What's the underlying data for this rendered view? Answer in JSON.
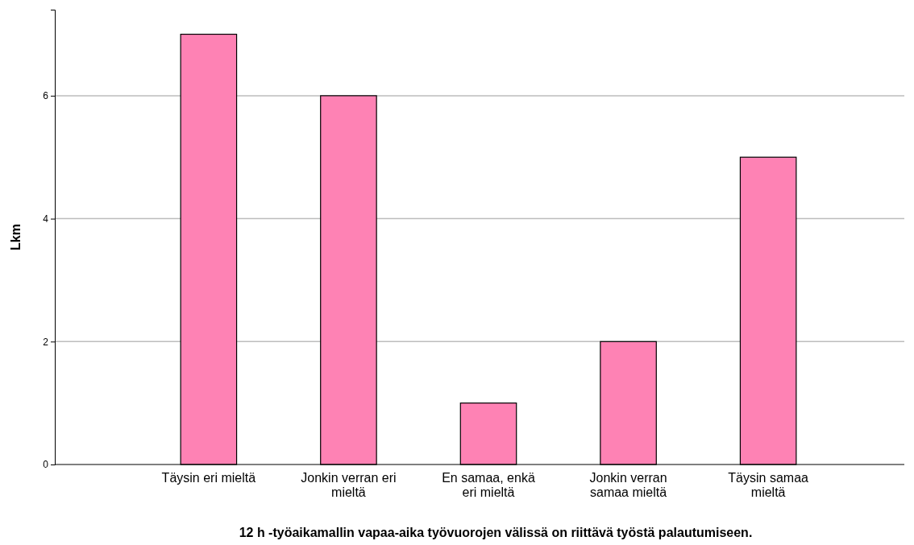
{
  "chart_data": {
    "type": "bar",
    "xlabel": "12 h -työaikamallin vapaa-aika työvuorojen välissä on riittävä työstä palautumiseen.",
    "ylabel": "Lkm",
    "categories": [
      "Täysin eri mieltä",
      "Jonkin verran eri mieltä",
      "En samaa, enkä eri mieltä",
      "Jonkin verran samaa mieltä",
      "Täysin samaa mieltä"
    ],
    "values": [
      7,
      6,
      1,
      2,
      5
    ],
    "color": "#fe82b4",
    "ylim": [
      0,
      7.4
    ],
    "yticks": [
      0,
      2,
      4,
      6
    ],
    "grid": "y"
  }
}
